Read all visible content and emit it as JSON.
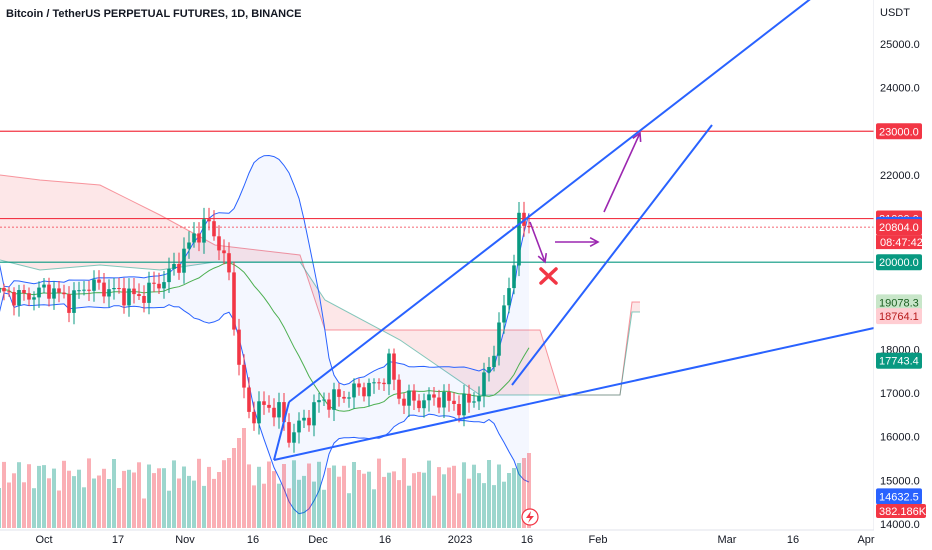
{
  "chart_data": {
    "type": "candlestick",
    "title": "Bitcoin / TetherUS PERPETUAL FUTURES, 1D, BINANCE",
    "currency_label": "USDT",
    "y_ticks": [
      "25000.0",
      "24000.0",
      "23000.0",
      "22000.0",
      "21000.0",
      "20000.0",
      "19000.0",
      "18000.0",
      "17000.0",
      "16000.0",
      "15000.0",
      "14000.0"
    ],
    "ylim": [
      14000,
      25400
    ],
    "x_ticks": [
      "Oct",
      "17",
      "Nov",
      "16",
      "Dec",
      "16",
      "2023",
      "16",
      "Feb",
      "Mar",
      "16",
      "Apr"
    ],
    "levels": [
      {
        "name": "resistance",
        "value": 23000,
        "label": "23000.0",
        "color": "#f23645"
      },
      {
        "name": "level-21000",
        "value": 21000,
        "label": "21000.0",
        "color": "#f23645"
      },
      {
        "name": "support",
        "value": 20000,
        "label": "20000.0",
        "color": "#089981"
      }
    ],
    "price_badges": [
      {
        "name": "ichimoku-a",
        "value": 20854.3,
        "label": "20854.3",
        "bg": "#2962ff",
        "fg": "#ffffff"
      },
      {
        "name": "last-price",
        "value": 20804.0,
        "label": "20804.0",
        "bg": "#f23645",
        "fg": "#ffffff"
      },
      {
        "name": "bb-upper-badge",
        "value": 19078.3,
        "label": "19078.3",
        "bg": "#c8e6c9",
        "fg": "#1b5e20"
      },
      {
        "name": "span-b-badge",
        "value": 18764.1,
        "label": "18764.1",
        "bg": "#ffcdd2",
        "fg": "#b71c1c"
      },
      {
        "name": "ma-badge",
        "value": 17743.4,
        "label": "17743.4",
        "bg": "#089981",
        "fg": "#ffffff"
      },
      {
        "name": "bb-lower-badge",
        "value": 14632.5,
        "label": "14632.5",
        "bg": "#2962ff",
        "fg": "#ffffff"
      }
    ],
    "countdown": "08:47:42",
    "volume_label": "382.186K",
    "volume_label_bg": "#f23645",
    "colors": {
      "up": "#089981",
      "down": "#f23645",
      "trend": "#2962ff",
      "arrow": "#9c27b0",
      "cross": "#f23645"
    }
  }
}
